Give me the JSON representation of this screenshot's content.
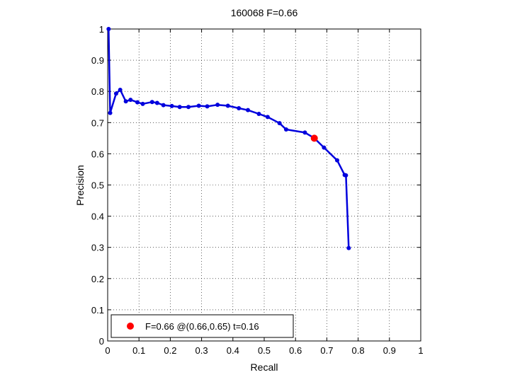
{
  "chart_data": {
    "type": "line",
    "title": "160068 F=0.66",
    "xlabel": "Recall",
    "ylabel": "Precision",
    "xlim": [
      0,
      1
    ],
    "ylim": [
      0,
      1
    ],
    "xticks": [
      "0",
      "0.1",
      "0.2",
      "0.3",
      "0.4",
      "0.5",
      "0.6",
      "0.7",
      "0.8",
      "0.9",
      "1"
    ],
    "yticks": [
      "0",
      "0.1",
      "0.2",
      "0.3",
      "0.4",
      "0.5",
      "0.6",
      "0.7",
      "0.8",
      "0.9",
      "1"
    ],
    "grid": true,
    "legend_position": "bottom-left",
    "series": [
      {
        "color": "#0000dd",
        "x": [
          0.77,
          0.761,
          0.757,
          0.733,
          0.691,
          0.659,
          0.63,
          0.57,
          0.549,
          0.511,
          0.483,
          0.448,
          0.419,
          0.384,
          0.351,
          0.318,
          0.291,
          0.258,
          0.23,
          0.205,
          0.178,
          0.158,
          0.142,
          0.112,
          0.095,
          0.073,
          0.058,
          0.04,
          0.027,
          0.008,
          0.003
        ],
        "y": [
          0.298,
          0.531,
          0.532,
          0.579,
          0.62,
          0.651,
          0.668,
          0.678,
          0.698,
          0.718,
          0.728,
          0.74,
          0.746,
          0.754,
          0.757,
          0.752,
          0.754,
          0.75,
          0.75,
          0.753,
          0.756,
          0.763,
          0.766,
          0.76,
          0.765,
          0.773,
          0.768,
          0.805,
          0.793,
          0.731,
          1.0
        ]
      }
    ],
    "highlight_point": {
      "x": 0.66,
      "y": 0.65,
      "color": "#ff0000",
      "label": "F=0.66 @(0.66,0.65) t=0.16"
    }
  }
}
